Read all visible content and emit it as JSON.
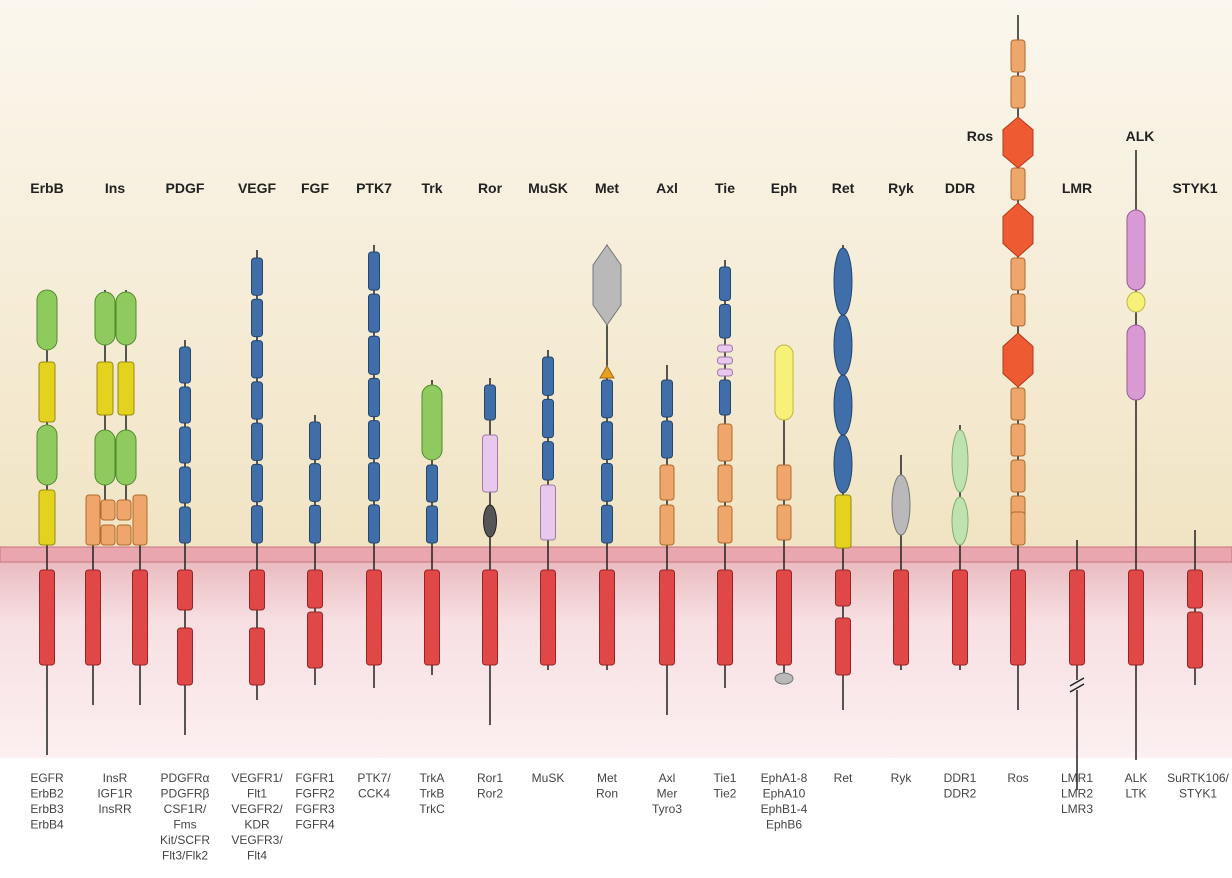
{
  "families": [
    {
      "name": "ErbB",
      "members": [
        "EGFR",
        "ErbB2",
        "ErbB3",
        "ErbB4"
      ]
    },
    {
      "name": "Ins",
      "members": [
        "InsR",
        "IGF1R",
        "InsRR"
      ]
    },
    {
      "name": "PDGF",
      "members": [
        "PDGFRα",
        "PDGFRβ",
        "CSF1R/",
        "Fms",
        "Kit/SCFR",
        "Flt3/Flk2"
      ]
    },
    {
      "name": "VEGF",
      "members": [
        "VEGFR1/",
        "Flt1",
        "VEGFR2/",
        "KDR",
        "VEGFR3/",
        "Flt4"
      ]
    },
    {
      "name": "FGF",
      "members": [
        "FGFR1",
        "FGFR2",
        "FGFR3",
        "FGFR4"
      ]
    },
    {
      "name": "PTK7",
      "members": [
        "PTK7/",
        "CCK4"
      ]
    },
    {
      "name": "Trk",
      "members": [
        "TrkA",
        "TrkB",
        "TrkC"
      ]
    },
    {
      "name": "Ror",
      "members": [
        "Ror1",
        "Ror2"
      ]
    },
    {
      "name": "MuSK",
      "members": [
        "MuSK"
      ]
    },
    {
      "name": "Met",
      "members": [
        "Met",
        "Ron"
      ]
    },
    {
      "name": "Axl",
      "members": [
        "Axl",
        "Mer",
        "Tyro3"
      ]
    },
    {
      "name": "Tie",
      "members": [
        "Tie1",
        "Tie2"
      ]
    },
    {
      "name": "Eph",
      "members": [
        "EphA1-8",
        "EphA10",
        "EphB1-4",
        "EphB6"
      ]
    },
    {
      "name": "Ret",
      "members": [
        "Ret"
      ]
    },
    {
      "name": "Ryk",
      "members": [
        "Ryk"
      ]
    },
    {
      "name": "DDR",
      "members": [
        "DDR1",
        "DDR2"
      ]
    },
    {
      "name": "Ros",
      "members": [
        "Ros"
      ]
    },
    {
      "name": "LMR",
      "members": [
        "LMR1",
        "LMR2",
        "LMR3"
      ]
    },
    {
      "name": "ALK",
      "members": [
        "ALK",
        "LTK"
      ]
    },
    {
      "name": "STYK1",
      "members": [
        "SuRTK106/",
        "STYK1"
      ]
    }
  ]
}
